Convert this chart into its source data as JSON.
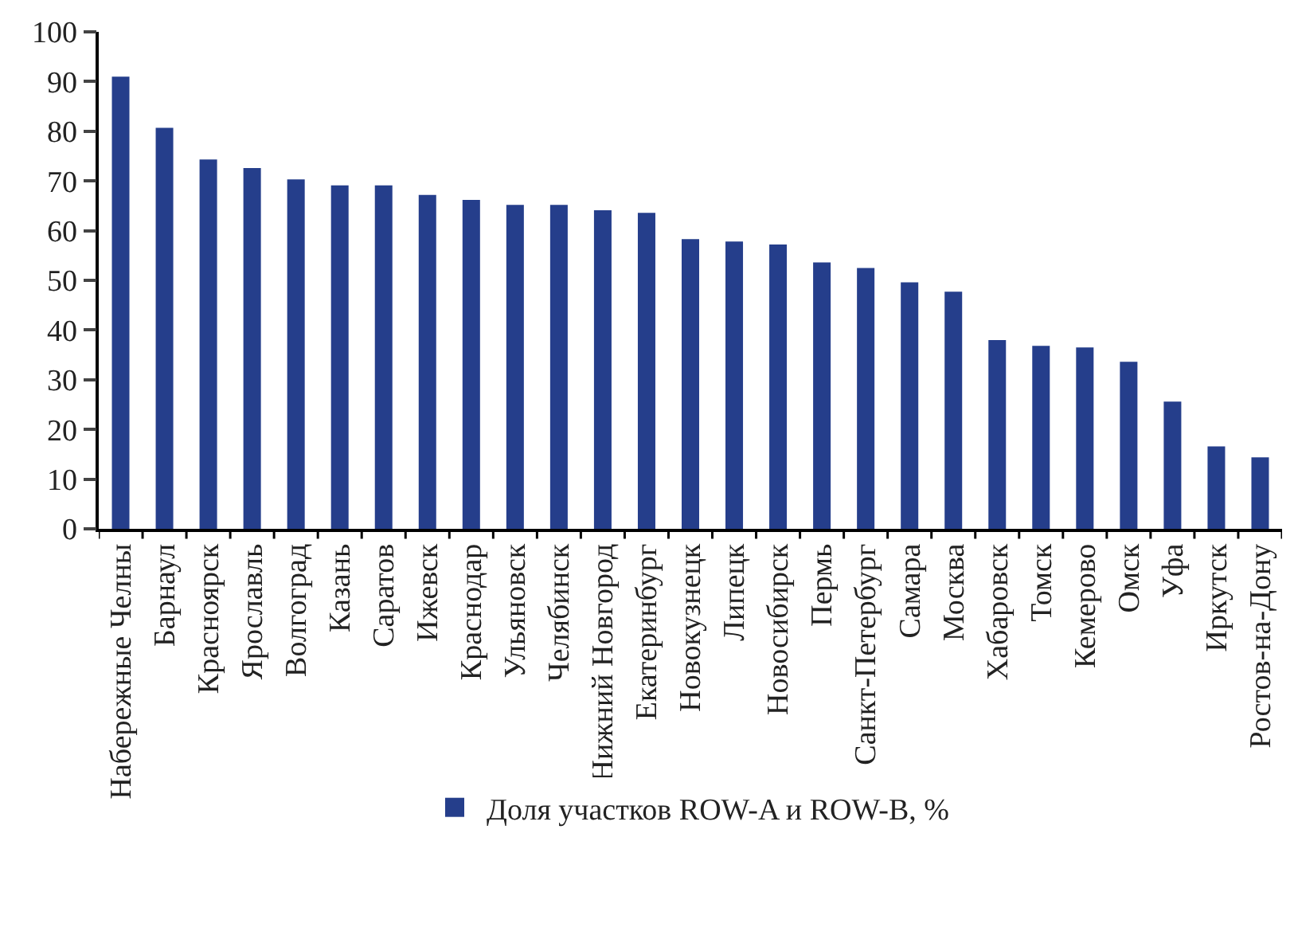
{
  "chart_data": {
    "type": "bar",
    "categories": [
      "Набережные Челны",
      "Барнаул",
      "Красноярск",
      "Ярославль",
      "Волгоград",
      "Казань",
      "Саратов",
      "Ижевск",
      "Краснодар",
      "Ульяновск",
      "Челябинск",
      "Нижний Новгород",
      "Екатеринбург",
      "Новокузнецк",
      "Липецк",
      "Новосибирск",
      "Пермь",
      "Санкт-Петербург",
      "Самара",
      "Москва",
      "Хабаровск",
      "Томск",
      "Кемерово",
      "Омск",
      "Уфа",
      "Иркутск",
      "Ростов-на-Дону"
    ],
    "series": [
      {
        "name": "Доля участков ROW-A и ROW-B, %",
        "color": "#253e8b",
        "values": [
          91,
          80.7,
          74.3,
          72.6,
          70.3,
          69.1,
          69.1,
          67.2,
          66.2,
          65.2,
          65.2,
          64.1,
          63.6,
          58.3,
          57.8,
          57.2,
          53.6,
          52.5,
          49.6,
          47.7,
          38,
          36.8,
          36.5,
          33.6,
          25.6,
          16.6,
          14.4
        ]
      }
    ],
    "ylim": [
      0,
      100
    ],
    "yticks": [
      0,
      10,
      20,
      30,
      40,
      50,
      60,
      70,
      80,
      90,
      100
    ],
    "grid": false,
    "legend": "bottom"
  }
}
